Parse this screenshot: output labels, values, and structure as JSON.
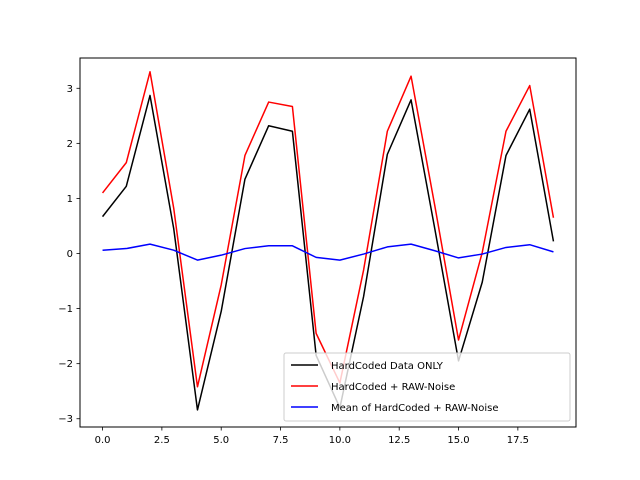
{
  "chart_data": {
    "type": "line",
    "title": "",
    "xlabel": "",
    "ylabel": "",
    "xlim": [
      -0.95,
      19.95
    ],
    "ylim": [
      -3.15,
      3.55
    ],
    "grid": false,
    "legend_position": "bottom-right",
    "x": [
      0,
      1,
      2,
      3,
      4,
      5,
      6,
      7,
      8,
      9,
      10,
      11,
      12,
      13,
      14,
      15,
      16,
      17,
      18,
      19
    ],
    "xticks": [
      0.0,
      2.5,
      5.0,
      7.5,
      10.0,
      12.5,
      15.0,
      17.5
    ],
    "xtick_labels": [
      "0.0",
      "2.5",
      "5.0",
      "7.5",
      "10.0",
      "12.5",
      "15.0",
      "17.5"
    ],
    "yticks": [
      -3,
      -2,
      -1,
      0,
      1,
      2,
      3
    ],
    "ytick_labels": [
      "−3",
      "−2",
      "−1",
      "0",
      "1",
      "2",
      "3"
    ],
    "series": [
      {
        "name": "HardCoded Data ONLY",
        "color": "#000000",
        "values": [
          0.67,
          1.22,
          2.87,
          0.45,
          -2.84,
          -1.05,
          1.35,
          2.32,
          2.22,
          -1.85,
          -2.8,
          -0.78,
          1.8,
          2.79,
          0.45,
          -1.95,
          -0.52,
          1.78,
          2.62,
          0.22
        ]
      },
      {
        "name": "HardCoded + RAW-Noise",
        "color": "#ff0000",
        "values": [
          1.1,
          1.65,
          3.3,
          0.82,
          -2.42,
          -0.57,
          1.78,
          2.75,
          2.67,
          -1.45,
          -2.35,
          -0.3,
          2.22,
          3.22,
          0.87,
          -1.57,
          0.02,
          2.22,
          3.05,
          0.65
        ]
      },
      {
        "name": "Mean of HardCoded + RAW-Noise",
        "color": "#0000ff",
        "values": [
          0.06,
          0.09,
          0.17,
          0.06,
          -0.12,
          -0.03,
          0.09,
          0.14,
          0.14,
          -0.07,
          -0.12,
          -0.01,
          0.12,
          0.17,
          0.05,
          -0.08,
          -0.01,
          0.11,
          0.16,
          0.03
        ]
      }
    ]
  }
}
